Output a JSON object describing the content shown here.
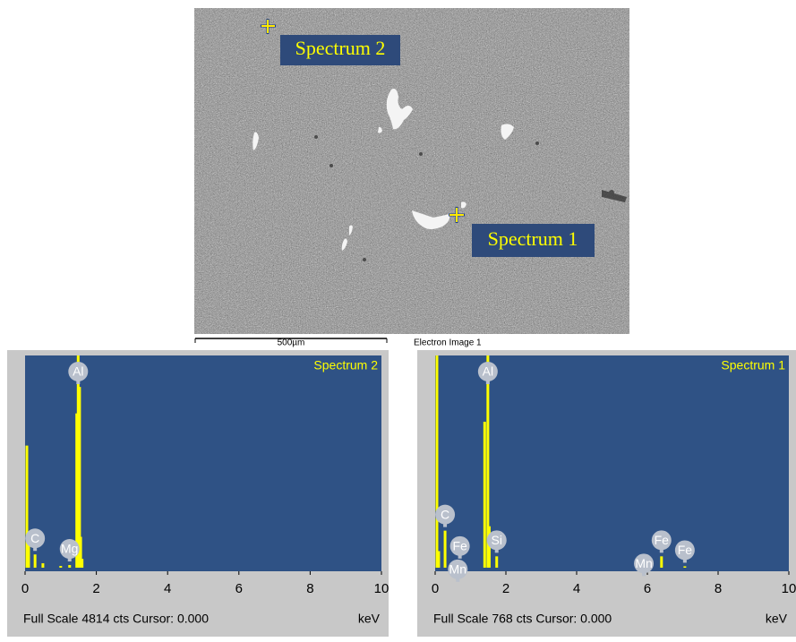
{
  "image": {
    "markers": [
      {
        "label": "Spectrum 2"
      },
      {
        "label": "Spectrum 1"
      }
    ],
    "scale_bar": "500µm",
    "caption": "Electron Image 1"
  },
  "chart_data": [
    {
      "type": "spectrum",
      "title": "Spectrum 2",
      "footer": "Full Scale 4814 cts Cursor: 0.000",
      "x_unit": "keV",
      "color": "#ffff00",
      "x": [
        0.05,
        0.1,
        0.28,
        0.5,
        1.0,
        1.25,
        1.45,
        1.49,
        1.53,
        1.56,
        1.6
      ],
      "values": [
        2770,
        650,
        300,
        100,
        40,
        60,
        3500,
        4814,
        4100,
        700,
        200
      ],
      "xlim": [
        0,
        10
      ],
      "xticks": [
        0,
        2,
        4,
        6,
        8,
        10
      ],
      "ylim": [
        0,
        4814
      ],
      "peak_labels": [
        {
          "text": "Mg",
          "x": 1.25
        },
        {
          "text": "Al",
          "x": 1.49
        },
        {
          "text": "C",
          "x": 0.28
        }
      ]
    },
    {
      "type": "spectrum",
      "title": "Spectrum 1",
      "footer": "Full Scale 768 cts Cursor: 0.000",
      "x_unit": "keV",
      "color": "#ffff00",
      "x": [
        0.05,
        0.1,
        0.28,
        0.64,
        0.7,
        1.4,
        1.49,
        1.53,
        1.74,
        5.9,
        6.4,
        7.06
      ],
      "values": [
        768,
        60,
        134,
        20,
        20,
        528,
        768,
        150,
        41,
        27,
        41,
        5
      ],
      "xlim": [
        0,
        10
      ],
      "xticks": [
        0,
        2,
        4,
        6,
        8,
        10
      ],
      "ylim": [
        0,
        768
      ],
      "peak_labels": [
        {
          "text": "Al",
          "x": 1.49
        },
        {
          "text": "Fe",
          "x": 0.7
        },
        {
          "text": "C",
          "x": 0.28
        },
        {
          "text": "Si",
          "x": 1.74
        },
        {
          "text": "Mn",
          "x": 0.64
        },
        {
          "text": "Fe",
          "x": 6.4
        },
        {
          "text": "Mn",
          "x": 5.9
        },
        {
          "text": "Fe",
          "x": 7.06
        }
      ]
    }
  ]
}
